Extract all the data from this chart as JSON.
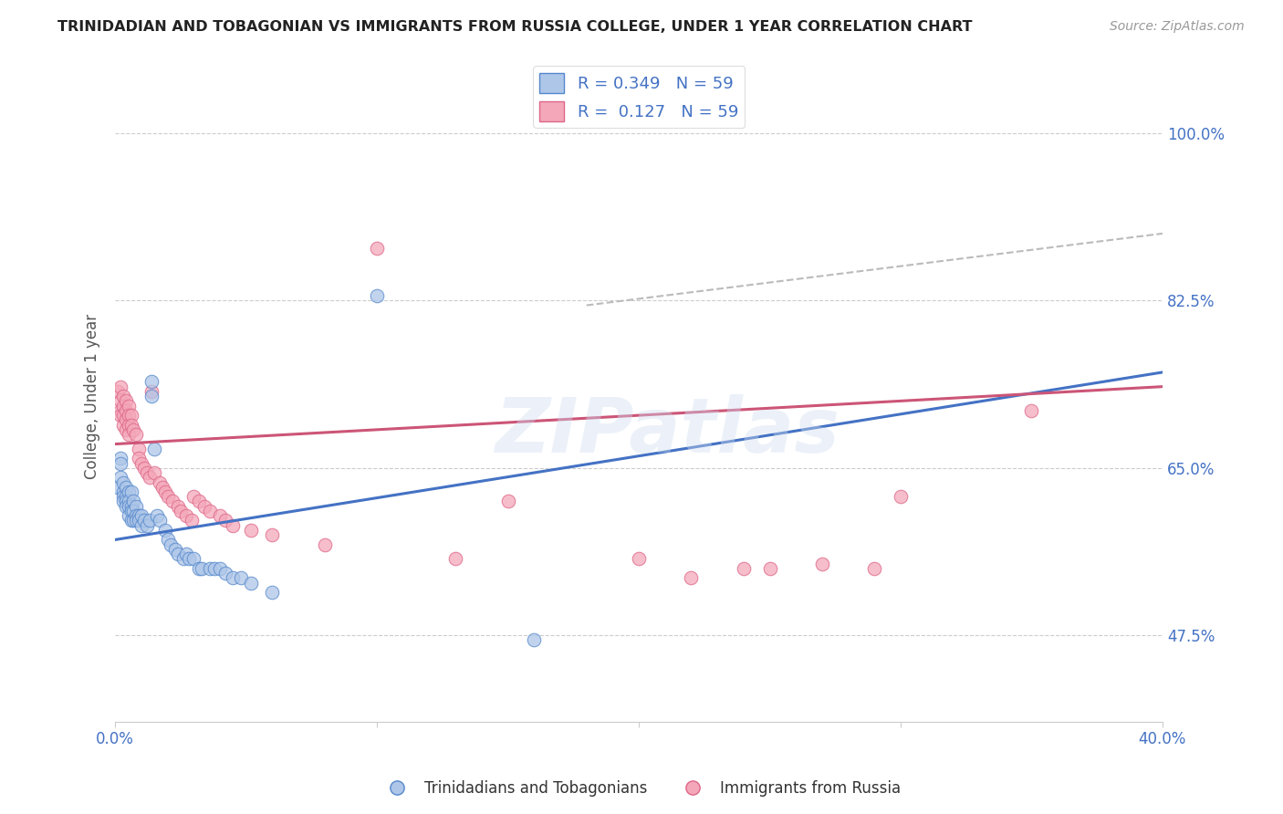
{
  "title": "TRINIDADIAN AND TOBAGONIAN VS IMMIGRANTS FROM RUSSIA COLLEGE, UNDER 1 YEAR CORRELATION CHART",
  "source": "Source: ZipAtlas.com",
  "ylabel": "College, Under 1 year",
  "ytick_labels": [
    "47.5%",
    "65.0%",
    "82.5%",
    "100.0%"
  ],
  "ytick_values": [
    0.475,
    0.65,
    0.825,
    1.0
  ],
  "xlim": [
    0.0,
    0.4
  ],
  "ylim": [
    0.385,
    1.065
  ],
  "legend_r1": "0.349",
  "legend_n1": "59",
  "legend_r2": "0.127",
  "legend_n2": "59",
  "color_blue": "#AEC6E8",
  "color_pink": "#F4A7B9",
  "edge_blue": "#5588CC",
  "edge_pink": "#DD6688",
  "trendline_blue": "#4472C4",
  "trendline_pink": "#CC5577",
  "trendline_dash": "#BBBBBB",
  "blue_scatter": [
    [
      0.001,
      0.63
    ],
    [
      0.002,
      0.64
    ],
    [
      0.002,
      0.66
    ],
    [
      0.002,
      0.655
    ],
    [
      0.003,
      0.625
    ],
    [
      0.003,
      0.635
    ],
    [
      0.003,
      0.62
    ],
    [
      0.003,
      0.615
    ],
    [
      0.004,
      0.63
    ],
    [
      0.004,
      0.62
    ],
    [
      0.004,
      0.615
    ],
    [
      0.004,
      0.61
    ],
    [
      0.005,
      0.625
    ],
    [
      0.005,
      0.615
    ],
    [
      0.005,
      0.61
    ],
    [
      0.005,
      0.6
    ],
    [
      0.006,
      0.625
    ],
    [
      0.006,
      0.61
    ],
    [
      0.006,
      0.605
    ],
    [
      0.006,
      0.595
    ],
    [
      0.007,
      0.615
    ],
    [
      0.007,
      0.605
    ],
    [
      0.007,
      0.595
    ],
    [
      0.008,
      0.61
    ],
    [
      0.008,
      0.6
    ],
    [
      0.008,
      0.595
    ],
    [
      0.009,
      0.6
    ],
    [
      0.009,
      0.595
    ],
    [
      0.01,
      0.6
    ],
    [
      0.01,
      0.59
    ],
    [
      0.011,
      0.595
    ],
    [
      0.012,
      0.59
    ],
    [
      0.013,
      0.595
    ],
    [
      0.014,
      0.74
    ],
    [
      0.014,
      0.725
    ],
    [
      0.015,
      0.67
    ],
    [
      0.016,
      0.6
    ],
    [
      0.017,
      0.595
    ],
    [
      0.019,
      0.585
    ],
    [
      0.02,
      0.575
    ],
    [
      0.021,
      0.57
    ],
    [
      0.023,
      0.565
    ],
    [
      0.024,
      0.56
    ],
    [
      0.026,
      0.555
    ],
    [
      0.027,
      0.56
    ],
    [
      0.028,
      0.555
    ],
    [
      0.03,
      0.555
    ],
    [
      0.032,
      0.545
    ],
    [
      0.033,
      0.545
    ],
    [
      0.036,
      0.545
    ],
    [
      0.038,
      0.545
    ],
    [
      0.04,
      0.545
    ],
    [
      0.042,
      0.54
    ],
    [
      0.045,
      0.535
    ],
    [
      0.048,
      0.535
    ],
    [
      0.052,
      0.53
    ],
    [
      0.06,
      0.52
    ],
    [
      0.1,
      0.83
    ],
    [
      0.16,
      0.47
    ]
  ],
  "pink_scatter": [
    [
      0.001,
      0.73
    ],
    [
      0.002,
      0.735
    ],
    [
      0.002,
      0.72
    ],
    [
      0.002,
      0.71
    ],
    [
      0.002,
      0.705
    ],
    [
      0.003,
      0.725
    ],
    [
      0.003,
      0.715
    ],
    [
      0.003,
      0.705
    ],
    [
      0.003,
      0.695
    ],
    [
      0.004,
      0.72
    ],
    [
      0.004,
      0.71
    ],
    [
      0.004,
      0.7
    ],
    [
      0.004,
      0.69
    ],
    [
      0.005,
      0.715
    ],
    [
      0.005,
      0.705
    ],
    [
      0.005,
      0.695
    ],
    [
      0.005,
      0.685
    ],
    [
      0.006,
      0.705
    ],
    [
      0.006,
      0.695
    ],
    [
      0.007,
      0.69
    ],
    [
      0.008,
      0.685
    ],
    [
      0.009,
      0.67
    ],
    [
      0.009,
      0.66
    ],
    [
      0.01,
      0.655
    ],
    [
      0.011,
      0.65
    ],
    [
      0.012,
      0.645
    ],
    [
      0.013,
      0.64
    ],
    [
      0.014,
      0.73
    ],
    [
      0.015,
      0.645
    ],
    [
      0.017,
      0.635
    ],
    [
      0.018,
      0.63
    ],
    [
      0.019,
      0.625
    ],
    [
      0.02,
      0.62
    ],
    [
      0.022,
      0.615
    ],
    [
      0.024,
      0.61
    ],
    [
      0.025,
      0.605
    ],
    [
      0.027,
      0.6
    ],
    [
      0.029,
      0.595
    ],
    [
      0.03,
      0.62
    ],
    [
      0.032,
      0.615
    ],
    [
      0.034,
      0.61
    ],
    [
      0.036,
      0.605
    ],
    [
      0.04,
      0.6
    ],
    [
      0.042,
      0.595
    ],
    [
      0.045,
      0.59
    ],
    [
      0.052,
      0.585
    ],
    [
      0.06,
      0.58
    ],
    [
      0.08,
      0.57
    ],
    [
      0.1,
      0.88
    ],
    [
      0.13,
      0.555
    ],
    [
      0.15,
      0.615
    ],
    [
      0.2,
      0.555
    ],
    [
      0.22,
      0.535
    ],
    [
      0.24,
      0.545
    ],
    [
      0.25,
      0.545
    ],
    [
      0.27,
      0.55
    ],
    [
      0.29,
      0.545
    ],
    [
      0.3,
      0.62
    ],
    [
      0.35,
      0.71
    ]
  ],
  "blue_trendline": [
    [
      0.0,
      0.575
    ],
    [
      0.4,
      0.75
    ]
  ],
  "pink_trendline": [
    [
      0.0,
      0.675
    ],
    [
      0.4,
      0.735
    ]
  ],
  "blue_dashline": [
    [
      0.18,
      0.82
    ],
    [
      0.4,
      0.895
    ]
  ]
}
